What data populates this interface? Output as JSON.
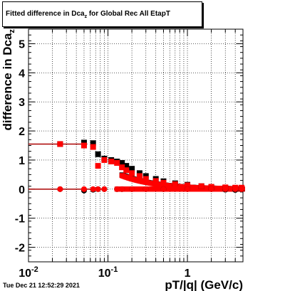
{
  "title_prefix": "Fitted difference in Dca",
  "title_sub": "z",
  "title_suffix": " for Global Rec All EtapT",
  "timestamp": "Tue Dec 21 12:52:29 2021",
  "chart_data": {
    "type": "scatter",
    "xlabel": "pT/|q| (GeV/c)",
    "ylabel_main": "difference in Dca",
    "ylabel_sub": "z",
    "xscale": "log",
    "xlim": [
      0.01,
      5
    ],
    "ylim": [
      -2.5,
      5.5
    ],
    "x_tick_labels": [
      {
        "value": 0.01,
        "base": "10",
        "exp": "-2"
      },
      {
        "value": 0.1,
        "base": "10",
        "exp": "-1"
      },
      {
        "value": 1,
        "base": "1",
        "exp": ""
      }
    ],
    "y_ticks": [
      -2,
      -1,
      0,
      1,
      2,
      3,
      4,
      5
    ],
    "grid": true,
    "series": [
      {
        "color": "#000000",
        "marker": "square",
        "x": [
          0.025,
          0.05,
          0.065,
          0.075,
          0.09,
          0.11,
          0.13,
          0.15,
          0.17,
          0.2,
          0.25,
          0.3,
          0.4,
          0.5,
          0.7,
          1.0,
          1.5,
          2.0,
          3.0,
          4.0,
          4.8
        ],
        "y": [
          1.55,
          1.6,
          1.58,
          1.2,
          1.05,
          1.0,
          0.95,
          0.9,
          0.8,
          0.7,
          0.55,
          0.45,
          0.35,
          0.27,
          0.2,
          0.15,
          0.1,
          0.07,
          0.05,
          0.03,
          0.02
        ]
      },
      {
        "color": "#ff0000",
        "marker": "square",
        "x": [
          0.025,
          0.05,
          0.065,
          0.075,
          0.09,
          0.11,
          0.13,
          0.15,
          0.17,
          0.2,
          0.25,
          0.3,
          0.4,
          0.5,
          0.7,
          1.0,
          1.5,
          2.0,
          3.0,
          4.0,
          4.8
        ],
        "y": [
          1.55,
          1.5,
          1.45,
          0.8,
          1.0,
          0.95,
          0.9,
          0.75,
          0.65,
          0.55,
          0.45,
          0.35,
          0.28,
          0.22,
          0.17,
          0.13,
          0.1,
          0.08,
          0.06,
          0.05,
          0.05
        ]
      },
      {
        "color": "#000000",
        "marker": "circle",
        "x": [
          0.025,
          0.05,
          0.065,
          0.075,
          0.09,
          0.13,
          0.15,
          0.2,
          0.3,
          0.5,
          1.0,
          2.0,
          3.0,
          4.0,
          4.8
        ],
        "y": [
          0.0,
          -0.05,
          -0.02,
          0.0,
          0.0,
          0.0,
          0.0,
          0.0,
          0.0,
          0.0,
          0.0,
          0.0,
          -0.02,
          -0.03,
          0.0
        ]
      },
      {
        "color": "#ff0000",
        "marker": "circle",
        "x": [
          0.025,
          0.05,
          0.065,
          0.075,
          0.09,
          0.13,
          0.15,
          0.2,
          0.3,
          0.5,
          1.0,
          2.0,
          3.0,
          4.0,
          4.8
        ],
        "y": [
          0.0,
          0.0,
          0.0,
          0.0,
          0.0,
          0.0,
          0.0,
          0.0,
          0.0,
          0.0,
          0.0,
          0.0,
          0.0,
          0.0,
          0.0
        ]
      }
    ]
  }
}
